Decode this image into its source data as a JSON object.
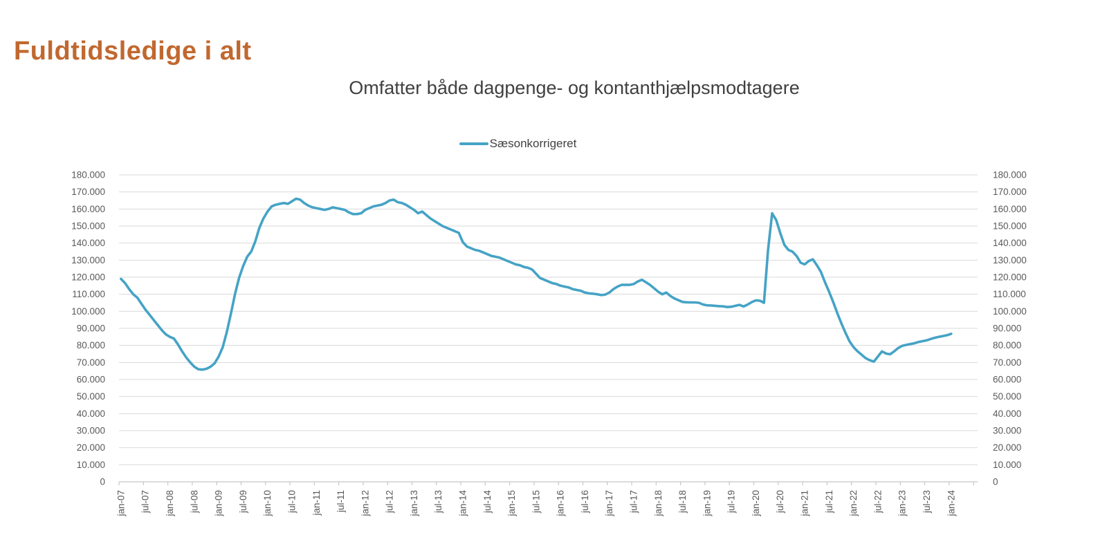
{
  "page": {
    "title": "Fuldtidsledige i alt",
    "title_color": "#C1682F"
  },
  "chart_data": {
    "type": "line",
    "title": "Omfatter både dagpenge- og kontanthjælpsmodtagere",
    "legend_position": "top-center",
    "grid": true,
    "frequency": "monthly",
    "x_start": "jan-07",
    "x_end": "jan-24",
    "x_tick_labels": [
      "jan-07",
      "jul-07",
      "jan-08",
      "jul-08",
      "jan-09",
      "jul-09",
      "jan-10",
      "jul-10",
      "jan-11",
      "jul-11",
      "jan-12",
      "jul-12",
      "jan-13",
      "jul-13",
      "jan-14",
      "jul-14",
      "jan-15",
      "jul-15",
      "jan-16",
      "jul-16",
      "jan-17",
      "jul-17",
      "jan-18",
      "jul-18",
      "jan-19",
      "jul-19",
      "jan-20",
      "jul-20",
      "jan-21",
      "jul-21",
      "jan-22",
      "jul-22",
      "jan-23",
      "jul-23",
      "jan-24"
    ],
    "y_axis": {
      "min": 0,
      "max": 180000,
      "step": 10000,
      "tick_labels": [
        "0",
        "10.000",
        "20.000",
        "30.000",
        "40.000",
        "50.000",
        "60.000",
        "70.000",
        "80.000",
        "90.000",
        "100.000",
        "110.000",
        "120.000",
        "130.000",
        "140.000",
        "150.000",
        "160.000",
        "170.000",
        "180.000"
      ],
      "shown_on_both_sides": true
    },
    "series": [
      {
        "name": "Sæsonkorrigeret",
        "color": "#45A3C5",
        "values": [
          119000,
          116500,
          113000,
          110000,
          108000,
          104500,
          101000,
          98000,
          95000,
          92000,
          89000,
          86500,
          85000,
          84000,
          80500,
          76500,
          73000,
          70000,
          67500,
          66000,
          65800,
          66300,
          67500,
          69500,
          73500,
          79000,
          88000,
          98500,
          110000,
          119500,
          126500,
          132000,
          135000,
          141000,
          149000,
          154500,
          158500,
          161500,
          162500,
          163000,
          163500,
          163000,
          164500,
          166000,
          165500,
          163500,
          162000,
          161000,
          160500,
          160000,
          159500,
          160000,
          161000,
          160500,
          160000,
          159500,
          158000,
          157000,
          157000,
          157500,
          159500,
          160500,
          161500,
          162000,
          162500,
          163500,
          165000,
          165500,
          164000,
          163500,
          162500,
          161000,
          159500,
          157500,
          158500,
          156500,
          154500,
          153000,
          151500,
          150000,
          149000,
          148000,
          147000,
          146000,
          140500,
          138000,
          137000,
          136000,
          135500,
          134500,
          133500,
          132500,
          132000,
          131500,
          130500,
          129500,
          128500,
          127500,
          127000,
          126000,
          125500,
          124500,
          122000,
          119500,
          118500,
          117500,
          116500,
          116000,
          115000,
          114500,
          114000,
          113000,
          112500,
          112000,
          111000,
          110500,
          110300,
          110000,
          109500,
          109800,
          111000,
          113000,
          114500,
          115500,
          115500,
          115500,
          116000,
          117500,
          118500,
          117000,
          115500,
          113500,
          111500,
          110000,
          111000,
          109000,
          107500,
          106500,
          105500,
          105300,
          105200,
          105200,
          105000,
          104000,
          103500,
          103400,
          103200,
          103000,
          102900,
          102500,
          102700,
          103200,
          103800,
          102800,
          104000,
          105400,
          106400,
          106200,
          105000,
          136000,
          157500,
          153500,
          146000,
          139000,
          136000,
          135000,
          132500,
          128500,
          127500,
          129500,
          130500,
          127000,
          123000,
          117000,
          111500,
          105500,
          99000,
          93000,
          87500,
          82500,
          79000,
          76500,
          74500,
          72500,
          71300,
          70500,
          73500,
          76500,
          75200,
          74800,
          76500,
          78500,
          79800,
          80300,
          80800,
          81300,
          82000,
          82500,
          83000,
          83800,
          84500,
          85000,
          85500,
          86000,
          86800
        ]
      }
    ],
    "style": {
      "gridline_color": "#DADADA",
      "axis_color": "#C6C6C6",
      "label_color": "#595959"
    }
  }
}
